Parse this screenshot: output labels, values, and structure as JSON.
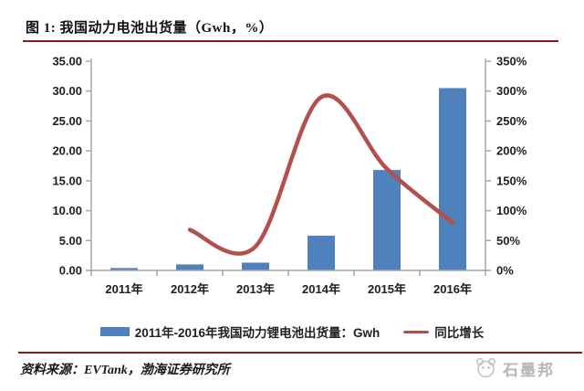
{
  "title": "图 1: 我国动力电池出货量（Gwh，%）",
  "source_note": "资料来源：EVTank，渤海证券研究所",
  "watermark": {
    "brand": "石墨邦"
  },
  "colors": {
    "bar": "#4f81bd",
    "line": "#b4504b",
    "rule": "#8e1b14",
    "axis": "#a6a6a6",
    "label_text": "#1f1f1f",
    "watermark": "#b5b5b5"
  },
  "chart_data": {
    "type": "combo",
    "title": "图 1: 我国动力电池出货量（Gwh，%）",
    "categories": [
      "2011年",
      "2012年",
      "2013年",
      "2014年",
      "2015年",
      "2016年"
    ],
    "series": [
      {
        "name": "2011年-2016年我国动力锂电池出货量：Gwh",
        "type": "bar",
        "axis": "left",
        "color": "#4f81bd",
        "values": [
          0.4,
          1.0,
          1.3,
          5.8,
          16.8,
          30.5
        ]
      },
      {
        "name": "同比增长",
        "type": "line",
        "axis": "right",
        "unit": "%",
        "color": "#b4504b",
        "smoothed": true,
        "values": [
          null,
          68,
          40,
          290,
          170,
          80
        ]
      }
    ],
    "left_axis": {
      "min": 0,
      "max": 35,
      "tick_labels": [
        "0.00",
        "5.00",
        "10.00",
        "15.00",
        "20.00",
        "25.00",
        "30.00",
        "35.00"
      ]
    },
    "right_axis": {
      "min": 0,
      "max": 350,
      "tick_labels": [
        "0%",
        "50%",
        "100%",
        "150%",
        "200%",
        "250%",
        "300%",
        "350%"
      ]
    },
    "grid": false,
    "legend_position": "bottom"
  }
}
